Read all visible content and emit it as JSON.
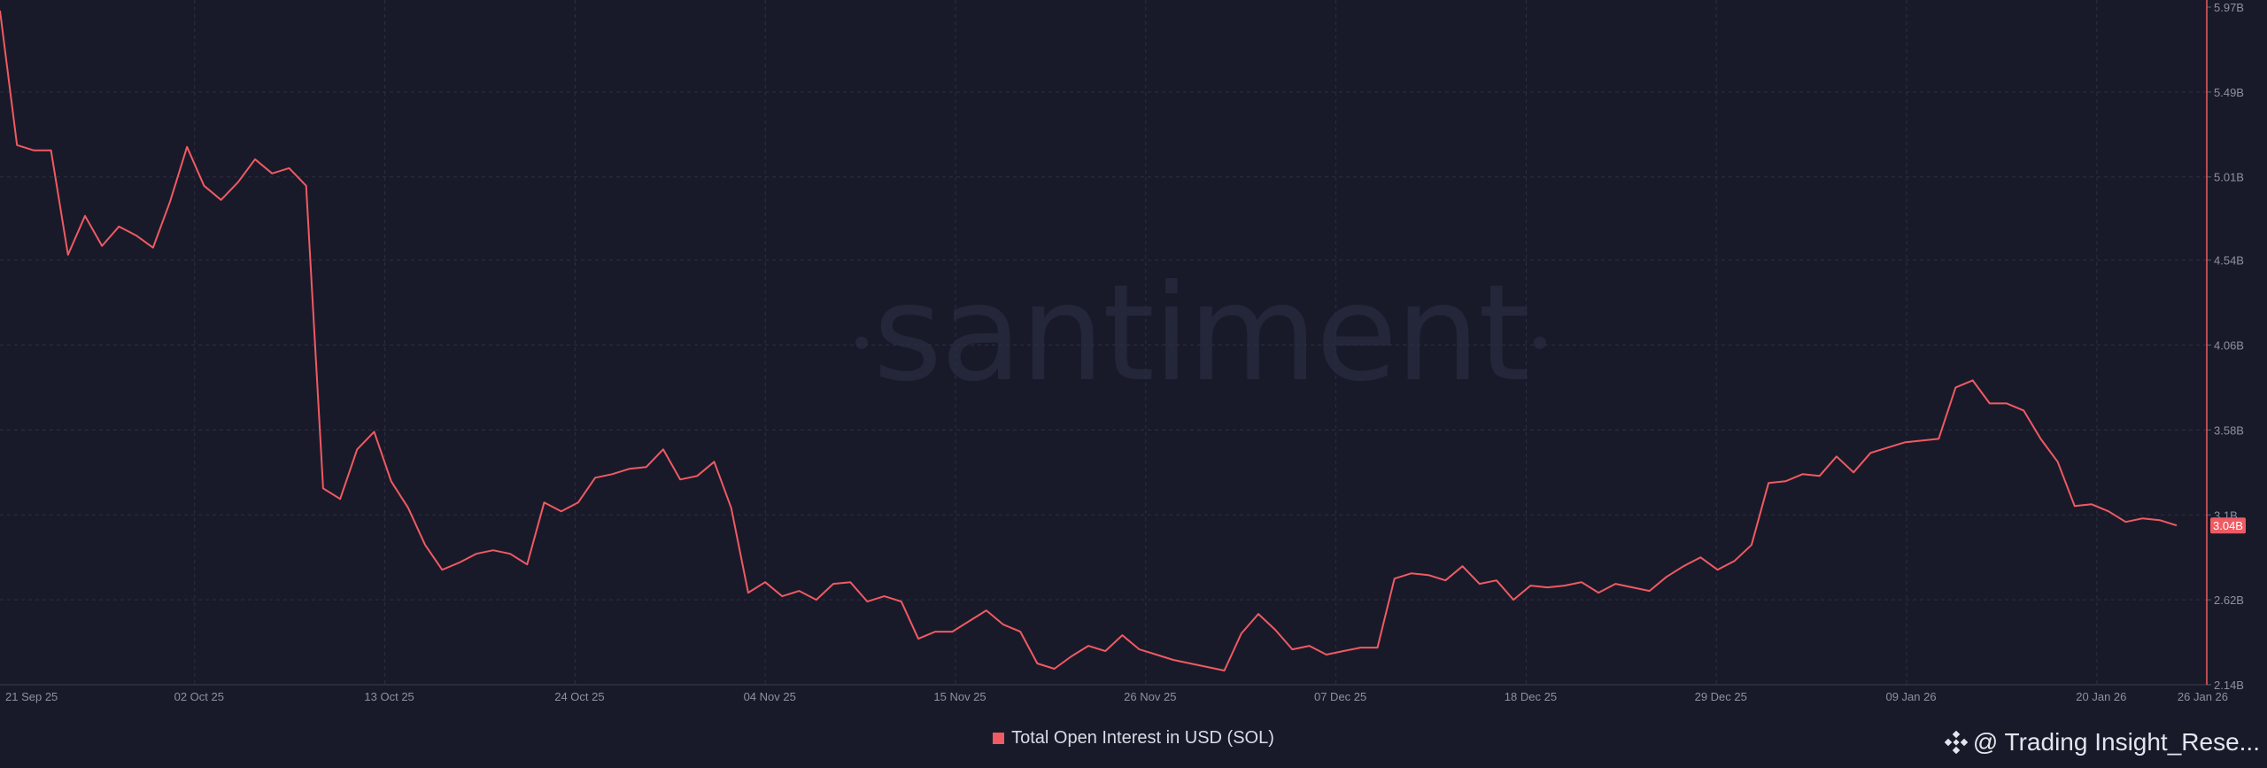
{
  "chart_data": {
    "type": "line",
    "title": "",
    "xlabel": "",
    "ylabel": "",
    "ylim": [
      2.14,
      5.97
    ],
    "y_unit": "B",
    "y_ticks": [
      {
        "value": 5.97,
        "label": "5.97B"
      },
      {
        "value": 5.49,
        "label": "5.49B"
      },
      {
        "value": 5.01,
        "label": "5.01B"
      },
      {
        "value": 4.54,
        "label": "4.54B"
      },
      {
        "value": 4.06,
        "label": "4.06B"
      },
      {
        "value": 3.58,
        "label": "3.58B"
      },
      {
        "value": 3.1,
        "label": "3.1B"
      },
      {
        "value": 2.62,
        "label": "2.62B"
      },
      {
        "value": 2.14,
        "label": "2.14B"
      }
    ],
    "x_ticks": [
      {
        "date": "2025-09-21",
        "label": "21 Sep 25"
      },
      {
        "date": "2025-10-02",
        "label": "02 Oct 25"
      },
      {
        "date": "2025-10-13",
        "label": "13 Oct 25"
      },
      {
        "date": "2025-10-24",
        "label": "24 Oct 25"
      },
      {
        "date": "2025-11-04",
        "label": "04 Nov 25"
      },
      {
        "date": "2025-11-15",
        "label": "15 Nov 25"
      },
      {
        "date": "2025-11-26",
        "label": "26 Nov 25"
      },
      {
        "date": "2025-12-07",
        "label": "07 Dec 25"
      },
      {
        "date": "2025-12-18",
        "label": "18 Dec 25"
      },
      {
        "date": "2025-12-29",
        "label": "29 Dec 25"
      },
      {
        "date": "2026-01-09",
        "label": "09 Jan 26"
      },
      {
        "date": "2026-01-20",
        "label": "20 Jan 26"
      },
      {
        "date": "2026-01-26",
        "label": "26 Jan 26"
      }
    ],
    "grid": true,
    "legend_position": "bottom-center",
    "series": [
      {
        "name": "Total Open Interest in USD (SOL)",
        "color": "#ef5a63",
        "x_start": "2025-09-21",
        "x_end": "2026-01-26",
        "values": [
          5.95,
          5.19,
          5.16,
          5.16,
          4.57,
          4.79,
          4.62,
          4.73,
          4.68,
          4.61,
          4.87,
          5.18,
          4.96,
          4.88,
          4.98,
          5.11,
          5.03,
          5.06,
          4.96,
          3.25,
          3.19,
          3.47,
          3.57,
          3.29,
          3.14,
          2.93,
          2.79,
          2.83,
          2.88,
          2.9,
          2.88,
          2.82,
          3.17,
          3.12,
          3.17,
          3.31,
          3.33,
          3.36,
          3.37,
          3.47,
          3.3,
          3.32,
          3.4,
          3.14,
          2.66,
          2.72,
          2.64,
          2.67,
          2.62,
          2.71,
          2.72,
          2.61,
          2.64,
          2.61,
          2.4,
          2.44,
          2.44,
          2.5,
          2.56,
          2.48,
          2.44,
          2.26,
          2.23,
          2.3,
          2.36,
          2.33,
          2.42,
          2.34,
          2.31,
          2.28,
          2.26,
          2.24,
          2.22,
          2.43,
          2.54,
          2.45,
          2.34,
          2.36,
          2.31,
          2.33,
          2.35,
          2.35,
          2.74,
          2.77,
          2.76,
          2.73,
          2.81,
          2.71,
          2.73,
          2.62,
          2.7,
          2.69,
          2.7,
          2.72,
          2.66,
          2.71,
          2.69,
          2.67,
          2.75,
          2.81,
          2.86,
          2.79,
          2.84,
          2.93,
          3.28,
          3.29,
          3.33,
          3.32,
          3.43,
          3.34,
          3.45,
          3.48,
          3.51,
          3.52,
          3.53,
          3.82,
          3.86,
          3.73,
          3.73,
          3.69,
          3.53,
          3.4,
          3.15,
          3.16,
          3.12,
          3.06,
          3.08,
          3.07,
          3.04
        ]
      }
    ],
    "last_value_label": "3.04B"
  },
  "watermark": "santiment",
  "legend": {
    "label": "Total Open Interest in USD (SOL)",
    "color": "#ef5a63"
  },
  "credit": {
    "text": "@ Trading Insight_Rese...",
    "icon": "binance-diamond-icon"
  }
}
